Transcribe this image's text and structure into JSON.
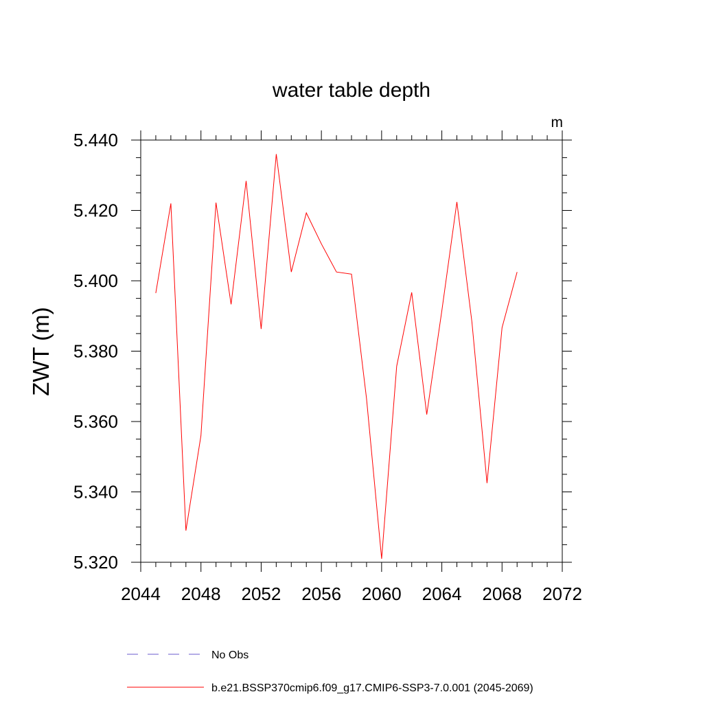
{
  "chart_data": {
    "type": "line",
    "title": "water table depth",
    "units": "m",
    "ylabel": "ZWT  (m)",
    "xlabel": "",
    "xlim": [
      2044,
      2072
    ],
    "ylim": [
      5.32,
      5.44
    ],
    "xticks": [
      "2044",
      "2048",
      "2052",
      "2056",
      "2060",
      "2064",
      "2068",
      "2072"
    ],
    "yticks": [
      "5.320",
      "5.340",
      "5.360",
      "5.380",
      "5.400",
      "5.420",
      "5.440"
    ],
    "legend_position": "bottom",
    "series": [
      {
        "name": "No Obs",
        "color": "#6a5acd",
        "dash": "dashed",
        "x": [],
        "y": []
      },
      {
        "name": "b.e21.BSSP370cmip6.f09_g17.CMIP6-SSP3-7.0.001 (2045-2069)",
        "color": "#ff0000",
        "dash": "solid",
        "x": [
          2045,
          2046,
          2047,
          2048,
          2049,
          2050,
          2051,
          2052,
          2053,
          2054,
          2055,
          2056,
          2057,
          2058,
          2059,
          2060,
          2061,
          2062,
          2063,
          2064,
          2065,
          2066,
          2067,
          2068,
          2069
        ],
        "y": [
          5.3965,
          5.422,
          5.329,
          5.356,
          5.4222,
          5.3933,
          5.4284,
          5.3863,
          5.436,
          5.4025,
          5.4193,
          5.4105,
          5.4025,
          5.4019,
          5.3665,
          5.321,
          5.3757,
          5.3967,
          5.362,
          5.3915,
          5.4224,
          5.3883,
          5.3425,
          5.3867,
          5.4025
        ]
      }
    ]
  }
}
